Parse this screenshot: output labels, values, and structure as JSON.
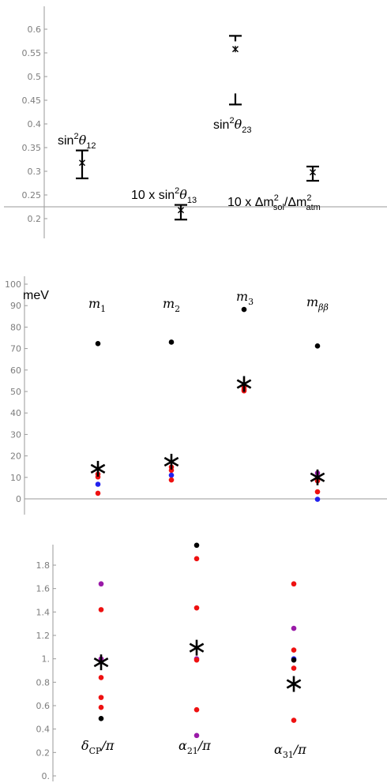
{
  "chart_data": [
    {
      "type": "scatter",
      "ylim": [
        0.18,
        0.65
      ],
      "y_ticks": [
        "0.2",
        "0.25",
        "0.3",
        "0.35",
        "0.4",
        "0.45",
        "0.5",
        "0.55",
        "0.6"
      ],
      "y_tick_values": [
        0.2,
        0.25,
        0.3,
        0.35,
        0.4,
        0.45,
        0.5,
        0.55,
        0.6
      ],
      "series": [
        {
          "label": "sin2θ12",
          "x": 1,
          "low": 0.285,
          "high": 0.344,
          "point": 0.318
        },
        {
          "label": "10 x sin2θ13",
          "x": 2,
          "low": 0.198,
          "high": 0.229,
          "point": 0.218
        },
        {
          "label": "sin2θ23",
          "x": 3,
          "low": 0.441,
          "high": 0.586,
          "point": 0.558,
          "open_interval": true
        },
        {
          "label": "10 x Δm2sol/Δm2atm",
          "x": 4,
          "low": 0.28,
          "high": 0.31,
          "point": 0.298
        }
      ]
    },
    {
      "type": "scatter",
      "ylabel": "meV",
      "ylim": [
        -2,
        100
      ],
      "y_ticks": [
        "0",
        "10",
        "20",
        "30",
        "40",
        "50",
        "60",
        "70",
        "80",
        "90",
        "100"
      ],
      "y_tick_values": [
        0,
        10,
        20,
        30,
        40,
        50,
        60,
        70,
        80,
        90,
        100
      ],
      "series": [
        {
          "label": "m1",
          "x": 1,
          "points": [
            {
              "v": 72.3,
              "c": "black"
            },
            {
              "v": 11.5,
              "c": "red"
            },
            {
              "v": 10.2,
              "c": "red"
            },
            {
              "v": 6.8,
              "c": "blue"
            },
            {
              "v": 2.6,
              "c": "red"
            }
          ],
          "star": 14.0
        },
        {
          "label": "m2",
          "x": 2,
          "points": [
            {
              "v": 73.0,
              "c": "black"
            },
            {
              "v": 14.8,
              "c": "red"
            },
            {
              "v": 13.3,
              "c": "red"
            },
            {
              "v": 11.0,
              "c": "blue"
            },
            {
              "v": 8.8,
              "c": "red"
            }
          ],
          "star": 17.3
        },
        {
          "label": "m3",
          "x": 3,
          "points": [
            {
              "v": 88.2,
              "c": "black"
            },
            {
              "v": 52.0,
              "c": "red"
            },
            {
              "v": 51.0,
              "c": "red"
            },
            {
              "v": 50.3,
              "c": "red"
            }
          ],
          "star": 53.5
        },
        {
          "label": "mββ",
          "x": 4,
          "points": [
            {
              "v": 71.2,
              "c": "black"
            },
            {
              "v": 12.0,
              "c": "purple"
            },
            {
              "v": 8.4,
              "c": "red"
            },
            {
              "v": 3.3,
              "c": "red"
            },
            {
              "v": -0.2,
              "c": "blue"
            }
          ],
          "star": 10.0
        }
      ]
    },
    {
      "type": "scatter",
      "ylim": [
        -0.05,
        2.0
      ],
      "y_ticks": [
        "0.",
        "0.2",
        "0.4",
        "0.6",
        "0.8",
        "1.",
        "1.2",
        "1.4",
        "1.6",
        "1.8"
      ],
      "y_tick_values": [
        0,
        0.2,
        0.4,
        0.6,
        0.8,
        1.0,
        1.2,
        1.4,
        1.6,
        1.8
      ],
      "series": [
        {
          "label": "δCP/π",
          "x": 1,
          "points": [
            {
              "v": 1.64,
              "c": "purple"
            },
            {
              "v": 1.42,
              "c": "red"
            },
            {
              "v": 1.0,
              "c": "purple"
            },
            {
              "v": 0.84,
              "c": "red"
            },
            {
              "v": 0.67,
              "c": "red"
            },
            {
              "v": 0.585,
              "c": "red"
            },
            {
              "v": 0.49,
              "c": "black"
            }
          ],
          "star": 0.97
        },
        {
          "label": "α21/π",
          "x": 2,
          "points": [
            {
              "v": 1.97,
              "c": "black"
            },
            {
              "v": 1.855,
              "c": "red"
            },
            {
              "v": 1.435,
              "c": "red"
            },
            {
              "v": 1.0,
              "c": "purple"
            },
            {
              "v": 0.99,
              "c": "red"
            },
            {
              "v": 0.565,
              "c": "red"
            },
            {
              "v": 0.345,
              "c": "purple"
            }
          ],
          "star": 1.095
        },
        {
          "label": "α31/π",
          "x": 3,
          "points": [
            {
              "v": 1.64,
              "c": "red"
            },
            {
              "v": 1.26,
              "c": "purple"
            },
            {
              "v": 1.075,
              "c": "red"
            },
            {
              "v": 1.0,
              "c": "blue"
            },
            {
              "v": 0.99,
              "c": "black"
            },
            {
              "v": 0.92,
              "c": "red"
            },
            {
              "v": 0.475,
              "c": "red"
            }
          ],
          "star": 0.785
        }
      ]
    }
  ],
  "labels": {
    "p1_l1_a": "sin",
    "p1_l1_sup": "2",
    "p1_l1_th": "θ",
    "p1_l1_sub": "12",
    "p1_l2_a": "10 x sin",
    "p1_l2_sup": "2",
    "p1_l2_th": "θ",
    "p1_l2_sub": "13",
    "p1_l3_a": "sin",
    "p1_l3_sup": "2",
    "p1_l3_th": "θ",
    "p1_l3_sub": "23",
    "p1_l4_a": "10 x Δm",
    "p1_l4_sup1": "2",
    "p1_l4_sub1": "sol",
    "p1_l4_b": "/Δm",
    "p1_l4_sup2": "2",
    "p1_l4_sub2": "atm",
    "p2_l1_m": "m",
    "p2_l1_sub": "1",
    "p2_l2_m": "m",
    "p2_l2_sub": "2",
    "p2_l3_m": "m",
    "p2_l3_sub": "3",
    "p2_l4_m": "m",
    "p2_l4_sub": "ββ",
    "p3_l1_a": "δ",
    "p3_l1_sub": "CP",
    "p3_l1_b": "/π",
    "p3_l2_a": "α",
    "p3_l2_sub": "21",
    "p3_l2_b": "/π",
    "p3_l3_a": "α",
    "p3_l3_sub": "31",
    "p3_l3_b": "/π"
  },
  "colors": {
    "black": "#000000",
    "red": "#ee1111",
    "blue": "#2222ee",
    "purple": "#9a1aa8",
    "axis": "#9a9a9a",
    "tick_text": "#7d7d7d"
  }
}
